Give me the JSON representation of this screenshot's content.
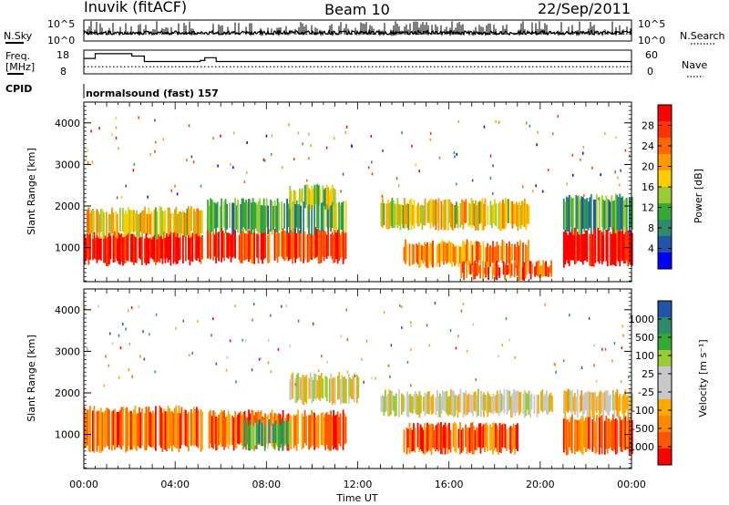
{
  "header": {
    "station": "Inuvik (fitACF)",
    "beam": "Beam 10",
    "date": "22/Sep/2011"
  },
  "noise_panel": {
    "left_label": "N.Sky",
    "right_label": "N.Search",
    "left_ticks": [
      "10^5",
      "10^0"
    ],
    "right_ticks": [
      "10^5",
      "10^0"
    ]
  },
  "freq_panel": {
    "left_label_1": "Freq.",
    "left_label_2": "[MHz]",
    "right_label": "Nave",
    "left_ticks": [
      "18",
      "8"
    ],
    "right_ticks": [
      "60",
      "0"
    ],
    "freq_steps": [
      {
        "t": 0.0,
        "v": 14.5
      },
      {
        "t": 0.5,
        "v": 16.5
      },
      {
        "t": 2.1,
        "v": 15.5
      },
      {
        "t": 2.65,
        "v": 13.2
      },
      {
        "t": 5.1,
        "v": 13.6
      },
      {
        "t": 5.3,
        "v": 14.8
      },
      {
        "t": 5.8,
        "v": 13.2
      },
      {
        "t": 24.0,
        "v": 13.2
      }
    ],
    "nave_value": 18
  },
  "cpid_panel": {
    "label": "CPID",
    "program": "normalsound (fast) 157"
  },
  "power_panel": {
    "ylabel": "Slant Range [km]",
    "colorbar_label": "Power [dB]",
    "colorbar_ticks": [
      "28",
      "24",
      "20",
      "16",
      "12",
      "8",
      "4"
    ],
    "colors": [
      "#ff0000",
      "#ff3300",
      "#ff6600",
      "#ff9900",
      "#ffcc00",
      "#99cc33",
      "#33aa33",
      "#2d8a6a",
      "#2255aa",
      "#0000ff"
    ]
  },
  "velocity_panel": {
    "ylabel": "Slant Range [km]",
    "colorbar_label": "Velocity [m s⁻¹]",
    "colorbar_ticks": [
      "1000",
      "500",
      "100",
      "25",
      "-25",
      "-100",
      "-500",
      "-1000"
    ],
    "colors": [
      "#2255aa",
      "#2d8a6a",
      "#33aa33",
      "#99cc33",
      "#c8c8c8",
      "#c8c8c8",
      "#ffaa00",
      "#ff8800",
      "#ff5500",
      "#ff0000"
    ]
  },
  "chart_data": {
    "type": "heatmap",
    "x_range_hours": [
      0,
      24
    ],
    "y_range_km": [
      180,
      4500
    ],
    "x_tick_labels": [
      "00:00",
      "04:00",
      "08:00",
      "12:00",
      "16:00",
      "20:00",
      "00:00"
    ],
    "y_tick_labels": [
      "1000",
      "2000",
      "3000",
      "4000"
    ],
    "xlabel": "Time UT",
    "power_bands": [
      {
        "t0": 0.0,
        "t1": 5.2,
        "r0": 650,
        "r1": 1300,
        "level": 0.95
      },
      {
        "t0": 0.0,
        "t1": 5.2,
        "r0": 1300,
        "r1": 1900,
        "level": 0.55
      },
      {
        "t0": 5.4,
        "t1": 11.5,
        "r0": 700,
        "r1": 1400,
        "level": 0.85
      },
      {
        "t0": 5.4,
        "t1": 11.5,
        "r0": 1400,
        "r1": 2100,
        "level": 0.35
      },
      {
        "t0": 9.0,
        "t1": 11.0,
        "r0": 2000,
        "r1": 2450,
        "level": 0.45
      },
      {
        "t0": 13.0,
        "t1": 19.5,
        "r0": 1500,
        "r1": 2100,
        "level": 0.55
      },
      {
        "t0": 14.0,
        "t1": 19.5,
        "r0": 600,
        "r1": 1100,
        "level": 0.7
      },
      {
        "t0": 16.5,
        "t1": 20.5,
        "r0": 300,
        "r1": 600,
        "level": 0.8
      },
      {
        "t0": 21.0,
        "t1": 24.0,
        "r0": 600,
        "r1": 1400,
        "level": 0.95
      },
      {
        "t0": 21.0,
        "t1": 24.0,
        "r0": 1400,
        "r1": 2200,
        "level": 0.3
      }
    ],
    "velocity_bands": [
      {
        "t0": 0.0,
        "t1": 5.2,
        "r0": 650,
        "r1": 1600,
        "level": 0.2
      },
      {
        "t0": 5.4,
        "t1": 11.5,
        "r0": 700,
        "r1": 1500,
        "level": 0.2
      },
      {
        "t0": 7.0,
        "t1": 9.0,
        "r0": 700,
        "r1": 1300,
        "level": 0.75
      },
      {
        "t0": 9.0,
        "t1": 12.0,
        "r0": 1800,
        "r1": 2400,
        "level": 0.5
      },
      {
        "t0": 13.0,
        "t1": 20.5,
        "r0": 1500,
        "r1": 2000,
        "level": 0.5
      },
      {
        "t0": 14.0,
        "t1": 19.0,
        "r0": 600,
        "r1": 1200,
        "level": 0.2
      },
      {
        "t0": 21.0,
        "t1": 24.0,
        "r0": 600,
        "r1": 1400,
        "level": 0.2
      },
      {
        "t0": 21.0,
        "t1": 24.0,
        "r0": 1500,
        "r1": 2000,
        "level": 0.45
      }
    ]
  }
}
